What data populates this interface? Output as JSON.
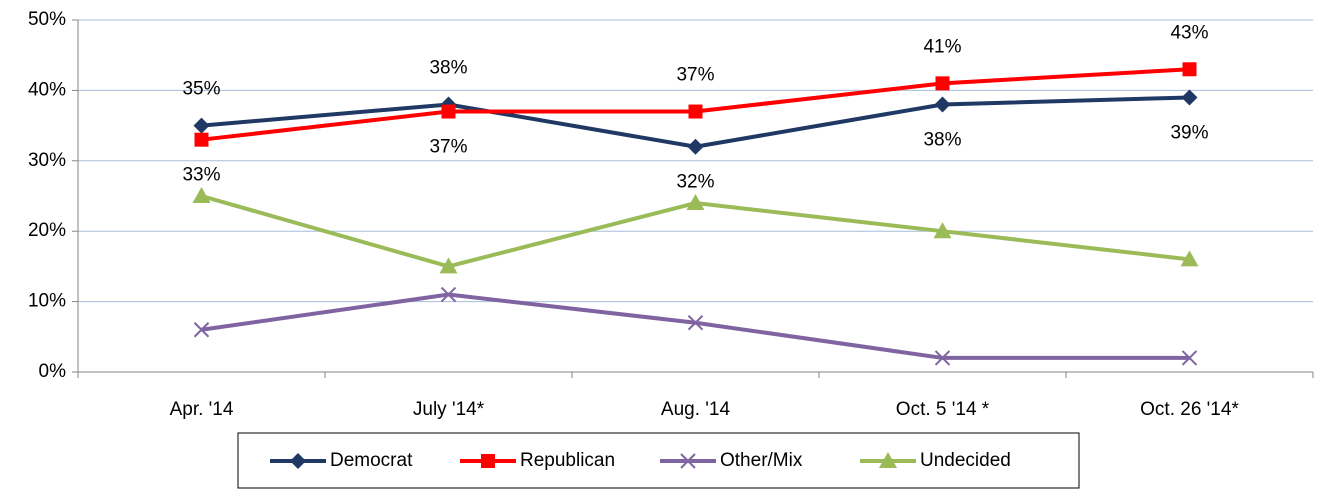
{
  "chart_data": {
    "type": "line",
    "categories": [
      "Apr. '14",
      "July '14*",
      "Aug. '14",
      "Oct. 5 '14 *",
      "Oct. 26 '14*"
    ],
    "series": [
      {
        "name": "Democrat",
        "color": "#1f3864",
        "marker": "diamond",
        "values": [
          35,
          38,
          32,
          38,
          39
        ],
        "value_labels": [
          "35%",
          "38%",
          "32%",
          "38%",
          "39%"
        ]
      },
      {
        "name": "Republican",
        "color": "#ff0000",
        "marker": "square",
        "values": [
          33,
          37,
          37,
          41,
          43
        ],
        "value_labels": [
          "33%",
          "37%",
          "37%",
          "41%",
          "43%"
        ]
      },
      {
        "name": "Other/Mix",
        "color": "#8064a2",
        "marker": "x",
        "values": [
          6,
          11,
          7,
          2,
          2
        ]
      },
      {
        "name": "Undecided",
        "color": "#9bbb59",
        "marker": "triangle",
        "values": [
          25,
          15,
          24,
          20,
          16
        ]
      }
    ],
    "ylim": [
      0,
      50
    ],
    "yticks": [
      {
        "value": 0,
        "label": "0%"
      },
      {
        "value": 10,
        "label": "10%"
      },
      {
        "value": 20,
        "label": "20%"
      },
      {
        "value": 30,
        "label": "30%"
      },
      {
        "value": 40,
        "label": "40%"
      },
      {
        "value": 50,
        "label": "50%"
      }
    ],
    "grid": true,
    "legend": "bottom"
  }
}
